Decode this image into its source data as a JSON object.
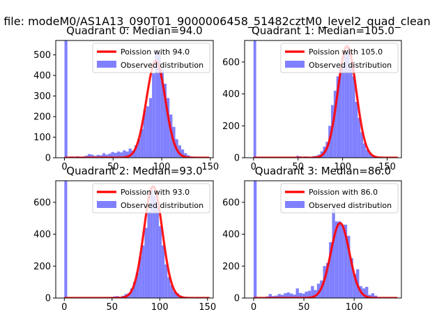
{
  "figure": {
    "suptitle": "n file: modeM0/AS1A13_090T01_9000006458_51482cztM0_level2_quad_clean"
  },
  "chart_data": [
    {
      "type": "bar",
      "title": "Quadrant 0: Median=94.0",
      "xlim": [
        -9,
        153
      ],
      "ylim": [
        0,
        570
      ],
      "xticks": [
        0,
        50,
        100,
        150
      ],
      "yticks": [
        0,
        100,
        200,
        300,
        400,
        500
      ],
      "legend_placement": "upper-right",
      "legend": [
        "Poission with 94.0",
        "Observed distribution"
      ],
      "colors": {
        "poisson": "#ff0000",
        "observed": "#8080ff"
      },
      "poisson_mean": 94.0,
      "poisson_peak": 470,
      "bin_width": 3,
      "bins": [
        [
          0,
          570
        ],
        [
          3,
          5
        ],
        [
          6,
          6
        ],
        [
          9,
          5
        ],
        [
          12,
          7
        ],
        [
          15,
          4
        ],
        [
          18,
          6
        ],
        [
          21,
          10
        ],
        [
          24,
          18
        ],
        [
          27,
          15
        ],
        [
          30,
          9
        ],
        [
          33,
          14
        ],
        [
          36,
          12
        ],
        [
          39,
          22
        ],
        [
          42,
          15
        ],
        [
          45,
          20
        ],
        [
          48,
          28
        ],
        [
          51,
          24
        ],
        [
          54,
          30
        ],
        [
          57,
          26
        ],
        [
          60,
          36
        ],
        [
          63,
          30
        ],
        [
          66,
          45
        ],
        [
          69,
          35
        ],
        [
          72,
          60
        ],
        [
          75,
          90
        ],
        [
          78,
          140
        ],
        [
          81,
          230
        ],
        [
          84,
          250
        ],
        [
          87,
          290
        ],
        [
          90,
          410
        ],
        [
          93,
          520
        ],
        [
          96,
          510
        ],
        [
          99,
          430
        ],
        [
          102,
          360
        ],
        [
          105,
          290
        ],
        [
          108,
          210
        ],
        [
          111,
          150
        ],
        [
          114,
          90
        ],
        [
          117,
          60
        ],
        [
          120,
          40
        ],
        [
          123,
          22
        ],
        [
          126,
          12
        ],
        [
          129,
          6
        ],
        [
          132,
          4
        ],
        [
          135,
          2
        ],
        [
          138,
          2
        ],
        [
          141,
          1
        ]
      ]
    },
    {
      "type": "bar",
      "title": "Quadrant 1: Median=105.0",
      "xlim": [
        -10,
        166
      ],
      "ylim": [
        0,
        735
      ],
      "xticks": [
        0,
        50,
        100,
        150
      ],
      "yticks": [
        0,
        200,
        400,
        600
      ],
      "legend_placement": "upper-right",
      "legend": [
        "Poission with 105.0",
        "Observed distribution"
      ],
      "colors": {
        "poisson": "#ff0000",
        "observed": "#8080ff"
      },
      "poisson_mean": 105.0,
      "poisson_peak": 700,
      "bin_width": 3,
      "bins": [
        [
          0,
          735
        ],
        [
          27,
          3
        ],
        [
          42,
          4
        ],
        [
          48,
          12
        ],
        [
          51,
          8
        ],
        [
          57,
          8
        ],
        [
          60,
          6
        ],
        [
          66,
          10
        ],
        [
          69,
          12
        ],
        [
          72,
          20
        ],
        [
          75,
          40
        ],
        [
          78,
          70
        ],
        [
          81,
          100
        ],
        [
          84,
          200
        ],
        [
          87,
          330
        ],
        [
          90,
          420
        ],
        [
          93,
          510
        ],
        [
          96,
          560
        ],
        [
          99,
          580
        ],
        [
          102,
          650
        ],
        [
          105,
          690
        ],
        [
          108,
          580
        ],
        [
          111,
          510
        ],
        [
          114,
          350
        ],
        [
          117,
          250
        ],
        [
          120,
          160
        ],
        [
          123,
          90
        ],
        [
          126,
          50
        ],
        [
          129,
          30
        ],
        [
          132,
          15
        ],
        [
          135,
          8
        ],
        [
          138,
          3
        ]
      ]
    },
    {
      "type": "bar",
      "title": "Quadrant 2: Median=93.0",
      "xlim": [
        -9,
        156
      ],
      "ylim": [
        0,
        735
      ],
      "xticks": [
        0,
        50,
        100,
        150
      ],
      "yticks": [
        0,
        200,
        400,
        600
      ],
      "legend_placement": "upper-right",
      "legend": [
        "Poission with 93.0",
        "Observed distribution"
      ],
      "colors": {
        "poisson": "#ff0000",
        "observed": "#8080ff"
      },
      "poisson_mean": 93.0,
      "poisson_peak": 700,
      "bin_width": 3,
      "bins": [
        [
          0,
          735
        ],
        [
          45,
          5
        ],
        [
          48,
          4
        ],
        [
          51,
          10
        ],
        [
          54,
          12
        ],
        [
          57,
          6
        ],
        [
          60,
          14
        ],
        [
          63,
          25
        ],
        [
          66,
          30
        ],
        [
          69,
          60
        ],
        [
          72,
          100
        ],
        [
          75,
          160
        ],
        [
          78,
          260
        ],
        [
          81,
          330
        ],
        [
          84,
          440
        ],
        [
          87,
          540
        ],
        [
          90,
          680
        ],
        [
          93,
          640
        ],
        [
          96,
          580
        ],
        [
          99,
          450
        ],
        [
          102,
          330
        ],
        [
          105,
          210
        ],
        [
          108,
          130
        ],
        [
          111,
          80
        ],
        [
          114,
          40
        ],
        [
          117,
          30
        ],
        [
          120,
          15
        ],
        [
          123,
          8
        ]
      ]
    },
    {
      "type": "bar",
      "title": "Quadrant 3: Median=86.0",
      "xlim": [
        -9,
        147
      ],
      "ylim": [
        0,
        735
      ],
      "xticks": [
        0,
        50,
        100
      ],
      "yticks": [
        0,
        200,
        400,
        600
      ],
      "legend_placement": "upper-right",
      "legend": [
        "Poission with 86.0",
        "Observed distribution"
      ],
      "colors": {
        "poisson": "#ff0000",
        "observed": "#8080ff"
      },
      "poisson_mean": 86.0,
      "poisson_peak": 470,
      "bin_width": 3,
      "bins": [
        [
          0,
          735
        ],
        [
          3,
          6
        ],
        [
          9,
          5
        ],
        [
          12,
          10
        ],
        [
          15,
          25
        ],
        [
          18,
          12
        ],
        [
          21,
          15
        ],
        [
          24,
          25
        ],
        [
          27,
          20
        ],
        [
          30,
          30
        ],
        [
          33,
          35
        ],
        [
          36,
          28
        ],
        [
          39,
          22
        ],
        [
          42,
          60
        ],
        [
          45,
          32
        ],
        [
          48,
          28
        ],
        [
          51,
          40
        ],
        [
          54,
          45
        ],
        [
          57,
          75
        ],
        [
          60,
          50
        ],
        [
          63,
          90
        ],
        [
          66,
          110
        ],
        [
          69,
          200
        ],
        [
          72,
          220
        ],
        [
          75,
          350
        ],
        [
          78,
          560
        ],
        [
          81,
          480
        ],
        [
          84,
          480
        ],
        [
          87,
          460
        ],
        [
          90,
          460
        ],
        [
          93,
          390
        ],
        [
          96,
          250
        ],
        [
          99,
          150
        ],
        [
          102,
          180
        ],
        [
          105,
          75
        ],
        [
          108,
          60
        ],
        [
          111,
          70
        ],
        [
          114,
          20
        ],
        [
          117,
          30
        ],
        [
          120,
          15
        ],
        [
          123,
          5
        ]
      ]
    }
  ]
}
